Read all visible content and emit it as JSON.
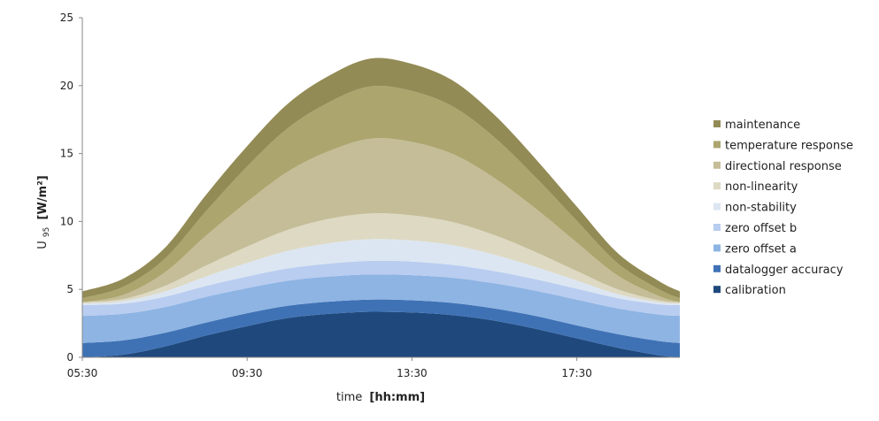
{
  "chart_data": {
    "type": "area",
    "stacked": true,
    "title": "",
    "xlabel": {
      "text": "time",
      "unit": "[hh:mm]"
    },
    "ylabel": {
      "base": "U",
      "sub": "95",
      "unit": "[W/m²]"
    },
    "xlim": [
      "05:30",
      "20:00"
    ],
    "ylim": [
      0,
      25
    ],
    "y_ticks": [
      0,
      5,
      10,
      15,
      20,
      25
    ],
    "x_ticks": [
      "05:30",
      "09:30",
      "13:30",
      "17:30"
    ],
    "grid": false,
    "legend_position": "right",
    "x": [
      "05:30",
      "06:30",
      "07:30",
      "08:30",
      "09:30",
      "10:30",
      "11:30",
      "12:30",
      "13:30",
      "14:30",
      "15:30",
      "16:30",
      "17:30",
      "18:30",
      "19:30",
      "20:00"
    ],
    "series": [
      {
        "name": "calibration",
        "color": "#1f497d",
        "values": [
          0.0,
          0.2,
          0.8,
          1.6,
          2.3,
          2.9,
          3.2,
          3.35,
          3.3,
          3.1,
          2.7,
          2.1,
          1.4,
          0.7,
          0.15,
          0.0
        ]
      },
      {
        "name": "datalogger accuracy",
        "color": "#3f72b5",
        "values": [
          1.05,
          1.05,
          1.0,
          0.95,
          0.95,
          0.9,
          0.9,
          0.9,
          0.9,
          0.9,
          0.9,
          0.95,
          0.95,
          1.0,
          1.05,
          1.05
        ]
      },
      {
        "name": "zero offset a",
        "color": "#8eb4e3",
        "values": [
          2.0,
          1.95,
          1.9,
          1.9,
          1.85,
          1.85,
          1.85,
          1.85,
          1.85,
          1.85,
          1.85,
          1.85,
          1.9,
          1.9,
          1.95,
          2.0
        ]
      },
      {
        "name": "zero offset b",
        "color": "#b9cdf0",
        "values": [
          0.8,
          0.75,
          0.75,
          0.8,
          0.85,
          0.9,
          0.95,
          1.0,
          1.0,
          0.95,
          0.9,
          0.85,
          0.8,
          0.75,
          0.75,
          0.8
        ]
      },
      {
        "name": "non-stability",
        "color": "#dce6f2",
        "values": [
          0.1,
          0.2,
          0.4,
          0.7,
          1.0,
          1.3,
          1.5,
          1.6,
          1.55,
          1.45,
          1.2,
          0.9,
          0.6,
          0.3,
          0.15,
          0.1
        ]
      },
      {
        "name": "non-linearity",
        "color": "#ddd9c3",
        "values": [
          0.1,
          0.15,
          0.4,
          0.8,
          1.2,
          1.55,
          1.8,
          1.9,
          1.85,
          1.7,
          1.45,
          1.1,
          0.7,
          0.35,
          0.15,
          0.1
        ]
      },
      {
        "name": "directional response",
        "color": "#c4bd97",
        "values": [
          0.0,
          0.3,
          1.0,
          2.2,
          3.3,
          4.3,
          5.0,
          5.5,
          5.4,
          5.0,
          4.2,
          3.2,
          2.1,
          1.0,
          0.3,
          0.0
        ]
      },
      {
        "name": "temperature response",
        "color": "#aca56e",
        "values": [
          0.3,
          0.6,
          1.0,
          1.8,
          2.6,
          3.2,
          3.6,
          3.85,
          3.75,
          3.5,
          3.0,
          2.3,
          1.6,
          0.9,
          0.5,
          0.3
        ]
      },
      {
        "name": "maintenance",
        "color": "#938b55",
        "values": [
          0.5,
          0.6,
          0.8,
          1.2,
          1.5,
          1.8,
          1.95,
          2.05,
          2.0,
          1.9,
          1.65,
          1.35,
          1.05,
          0.75,
          0.6,
          0.5
        ]
      }
    ]
  }
}
